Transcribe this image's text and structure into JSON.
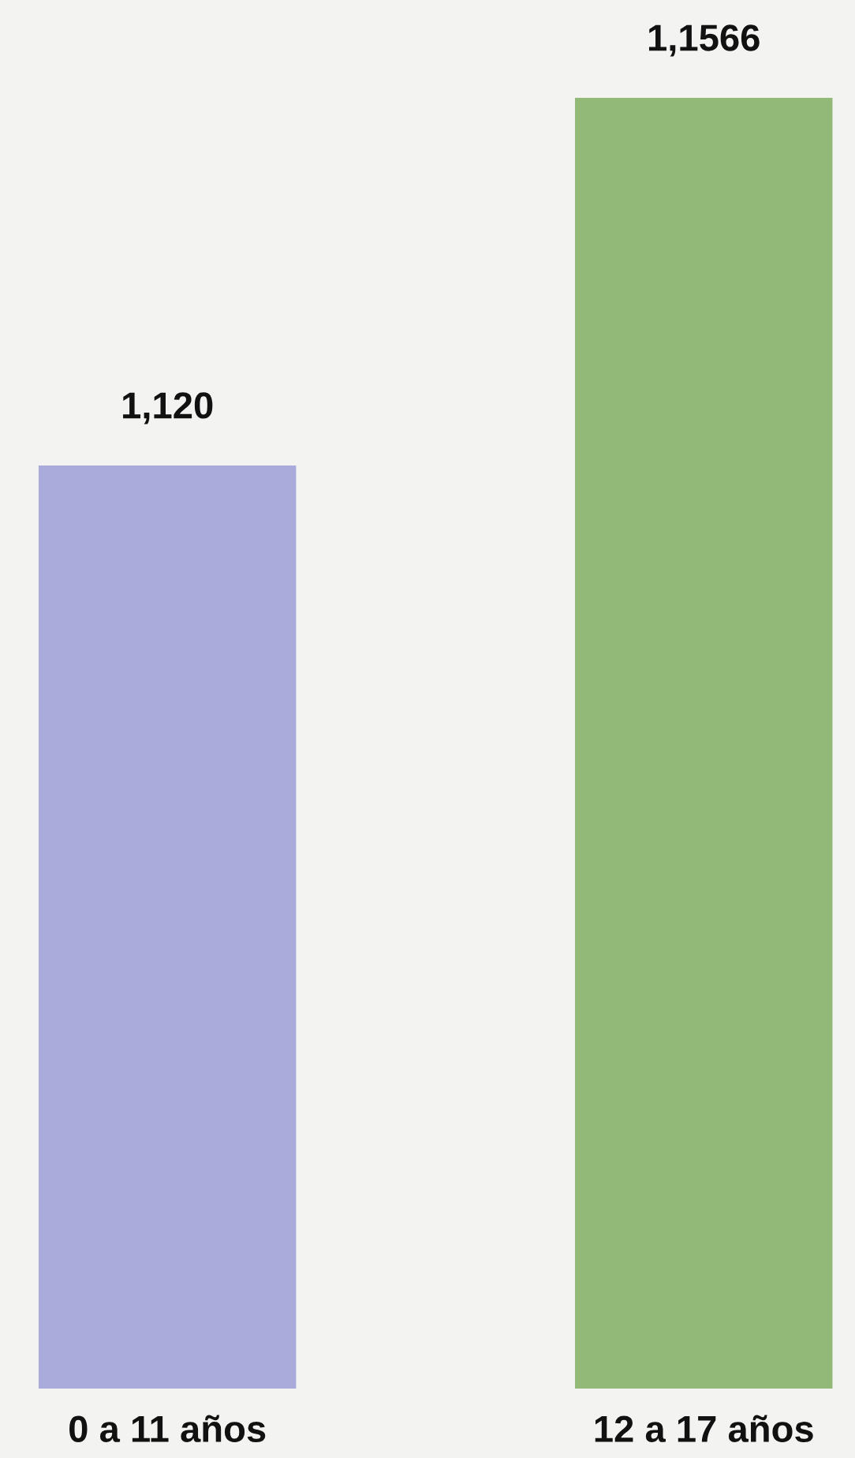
{
  "chart_data": {
    "type": "bar",
    "categories": [
      "0 a 11 años",
      "12 a 17 años"
    ],
    "values": [
      1120,
      1566
    ],
    "value_labels": [
      "1,120",
      "1,1566"
    ],
    "colors": [
      "#aaaadb",
      "#92b977"
    ],
    "grid": false,
    "legend": false
  }
}
